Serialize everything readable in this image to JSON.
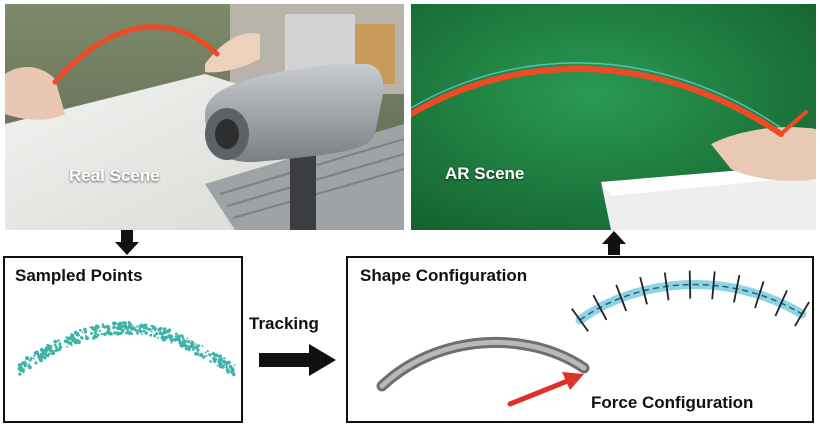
{
  "scenes": {
    "real": {
      "label": "Real Scene"
    },
    "ar": {
      "label": "AR Scene"
    }
  },
  "panels": {
    "sampled_points": {
      "title": "Sampled Points"
    },
    "configuration": {
      "shape_title": "Shape Configuration",
      "force_title": "Force Configuration"
    }
  },
  "flow": {
    "tracking_label": "Tracking"
  },
  "colors": {
    "green_screen": "#1f7a3c",
    "rod_orange": "#f04a24",
    "point_cloud": "#3fb3a8",
    "shape_line": "#8fd3e6",
    "frame_tick": "#222222",
    "rod_gray": "#8a8a8a",
    "force_arrow": "#e0302a"
  },
  "icons": {
    "down_arrow": "down-arrow-icon",
    "up_arrow": "up-arrow-icon",
    "right_arrow": "right-arrow-icon"
  }
}
